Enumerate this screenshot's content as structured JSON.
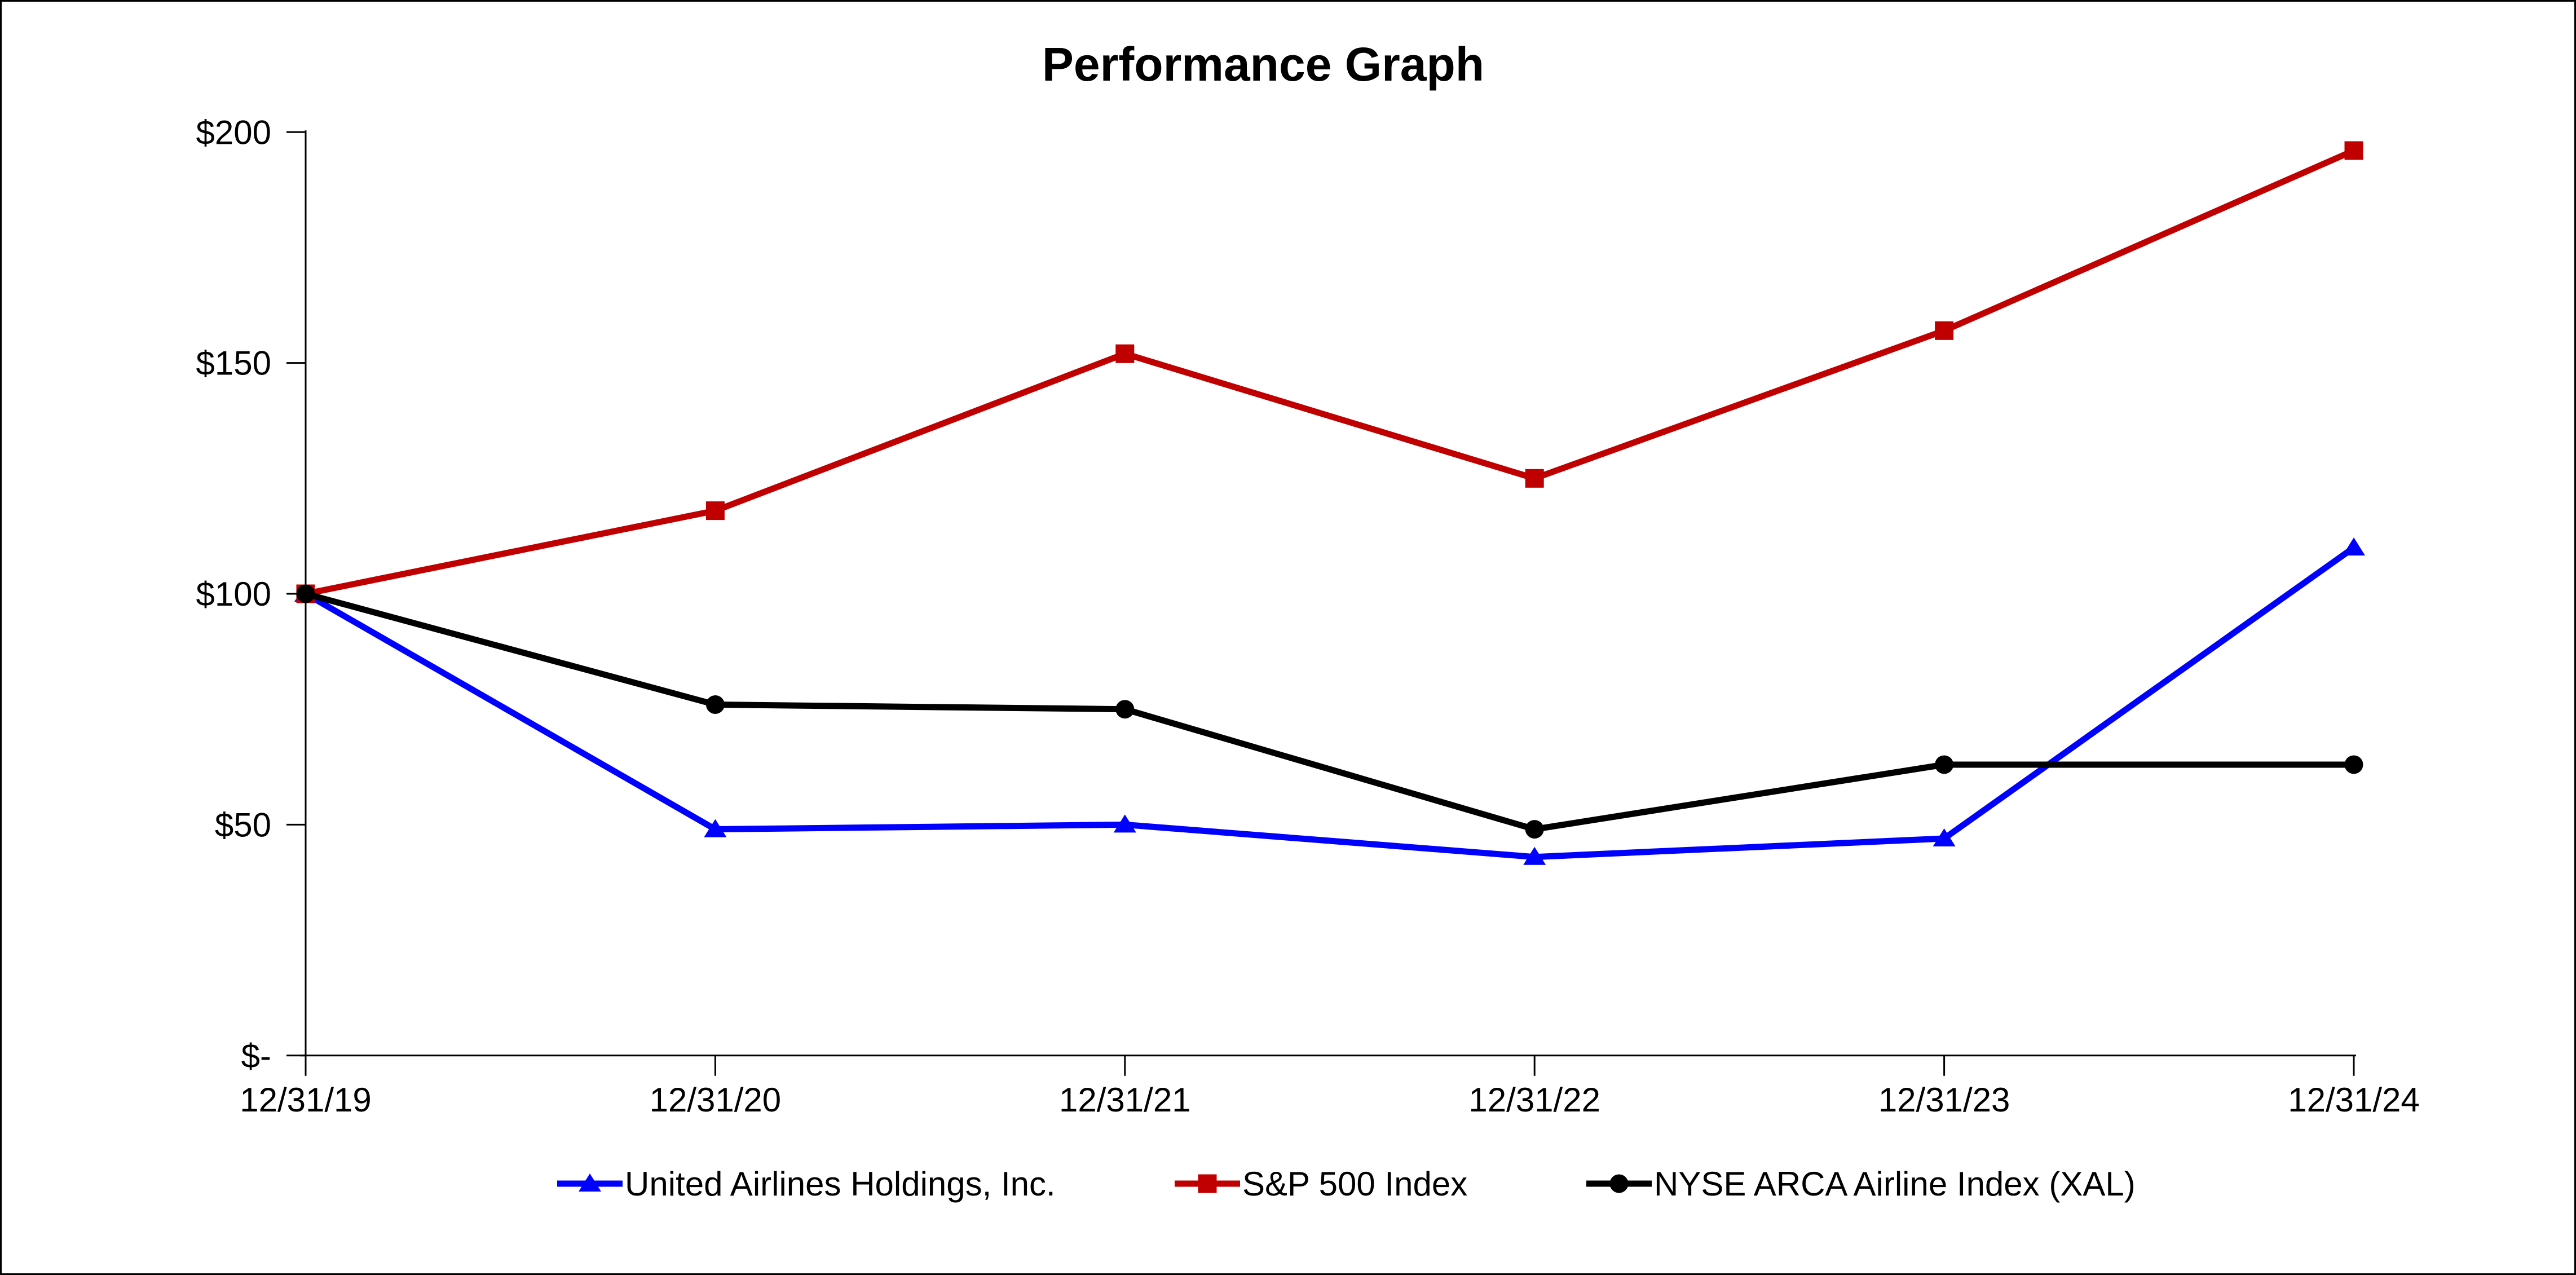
{
  "title": "Performance Graph",
  "colors": {
    "united_airlines": "#0000FF",
    "sp500": "#C00000",
    "xal": "#000000",
    "axis": "#000000",
    "background": "#FFFFFF"
  },
  "chart_data": {
    "type": "line",
    "title": "Performance Graph",
    "categories": [
      "12/31/19",
      "12/31/20",
      "12/31/21",
      "12/31/22",
      "12/31/23",
      "12/31/24"
    ],
    "series": [
      {
        "name": "United Airlines Holdings, Inc.",
        "color": "#0000FF",
        "marker": "triangle",
        "values": [
          100,
          49,
          50,
          43,
          47,
          110
        ]
      },
      {
        "name": "S&P 500 Index",
        "color": "#C00000",
        "marker": "square",
        "values": [
          100,
          118,
          152,
          125,
          157,
          196
        ]
      },
      {
        "name": "NYSE ARCA Airline Index (XAL)",
        "color": "#000000",
        "marker": "circle",
        "values": [
          100,
          76,
          75,
          49,
          63,
          63
        ]
      }
    ],
    "y_ticks": [
      {
        "label": "$-",
        "value": 0
      },
      {
        "label": "$50",
        "value": 50
      },
      {
        "label": "$100",
        "value": 100
      },
      {
        "label": "$150",
        "value": 150
      },
      {
        "label": "$200",
        "value": 200
      }
    ],
    "ylim": [
      0,
      200
    ],
    "xlabel": "",
    "ylabel": "",
    "grid": false,
    "legend_position": "bottom"
  }
}
